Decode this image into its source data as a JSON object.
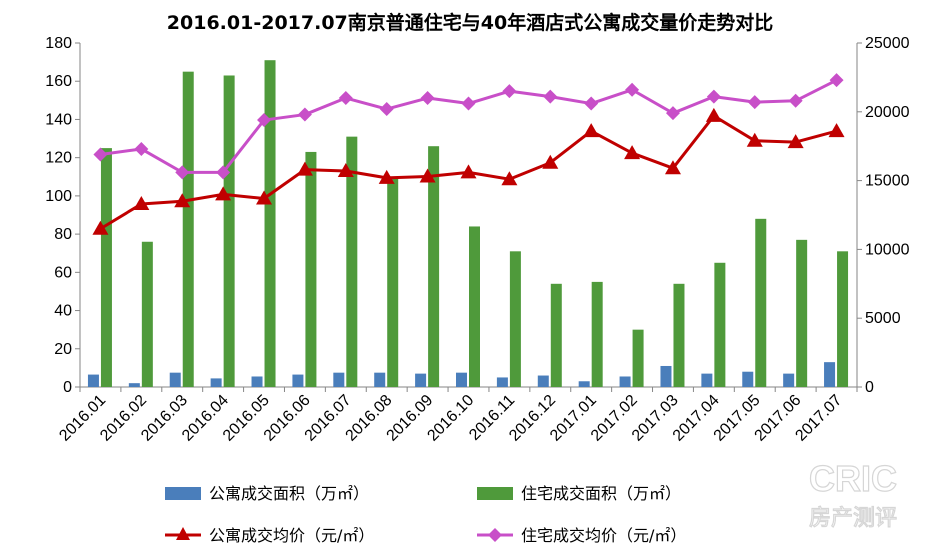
{
  "chart_data": {
    "type": "bar+line",
    "title": "2016.01-2017.07南京普通住宅与40年酒店式公寓成交量价走势对比",
    "categories": [
      "2016.01",
      "2016.02",
      "2016.03",
      "2016.04",
      "2016.05",
      "2016.06",
      "2016.07",
      "2016.08",
      "2016.09",
      "2016.10",
      "2016.11",
      "2016.12",
      "2017.01",
      "2017.02",
      "2017.03",
      "2017.04",
      "2017.05",
      "2017.06",
      "2017.07"
    ],
    "left_axis": {
      "min": 0,
      "max": 180,
      "step": 20,
      "ticks": [
        "0",
        "20",
        "40",
        "60",
        "80",
        "100",
        "120",
        "140",
        "160",
        "180"
      ]
    },
    "right_axis": {
      "min": 0,
      "max": 25000,
      "step": 5000,
      "ticks": [
        "0",
        "5000",
        "10000",
        "15000",
        "20000",
        "25000"
      ]
    },
    "series": [
      {
        "name": "公寓成交面积（万㎡）",
        "type": "bar",
        "axis": "left",
        "color": "#4a7ebb",
        "values": [
          6.5,
          2,
          7.5,
          4.5,
          5.5,
          6.5,
          7.5,
          7.5,
          7,
          7.5,
          5,
          6,
          3,
          5.5,
          11,
          7,
          8,
          7,
          13
        ]
      },
      {
        "name": "住宅成交面积（万㎡）",
        "type": "bar",
        "axis": "left",
        "color": "#4f9a3b",
        "values": [
          125,
          76,
          165,
          163,
          171,
          123,
          131,
          110,
          126,
          84,
          71,
          54,
          55,
          30,
          54,
          65,
          88,
          77,
          71
        ]
      },
      {
        "name": "公寓成交均价（元/㎡）",
        "type": "line",
        "axis": "right",
        "color": "#c00000",
        "marker": "triangle",
        "values": [
          11500,
          13300,
          13500,
          14000,
          13700,
          15800,
          15700,
          15200,
          15300,
          15600,
          15100,
          16300,
          18600,
          17000,
          15900,
          19700,
          17900,
          17800,
          18600
        ]
      },
      {
        "name": "住宅成交均价（元/㎡）",
        "type": "line",
        "axis": "right",
        "color": "#c84fc8",
        "marker": "diamond",
        "values": [
          16900,
          17300,
          15600,
          15600,
          19400,
          19800,
          21000,
          20200,
          21000,
          20600,
          21500,
          21100,
          20600,
          21600,
          19900,
          21100,
          20700,
          20800,
          22300
        ]
      }
    ],
    "legend_position": "bottom"
  },
  "watermark": {
    "line1": "CRIC",
    "line2": "房产测评"
  }
}
